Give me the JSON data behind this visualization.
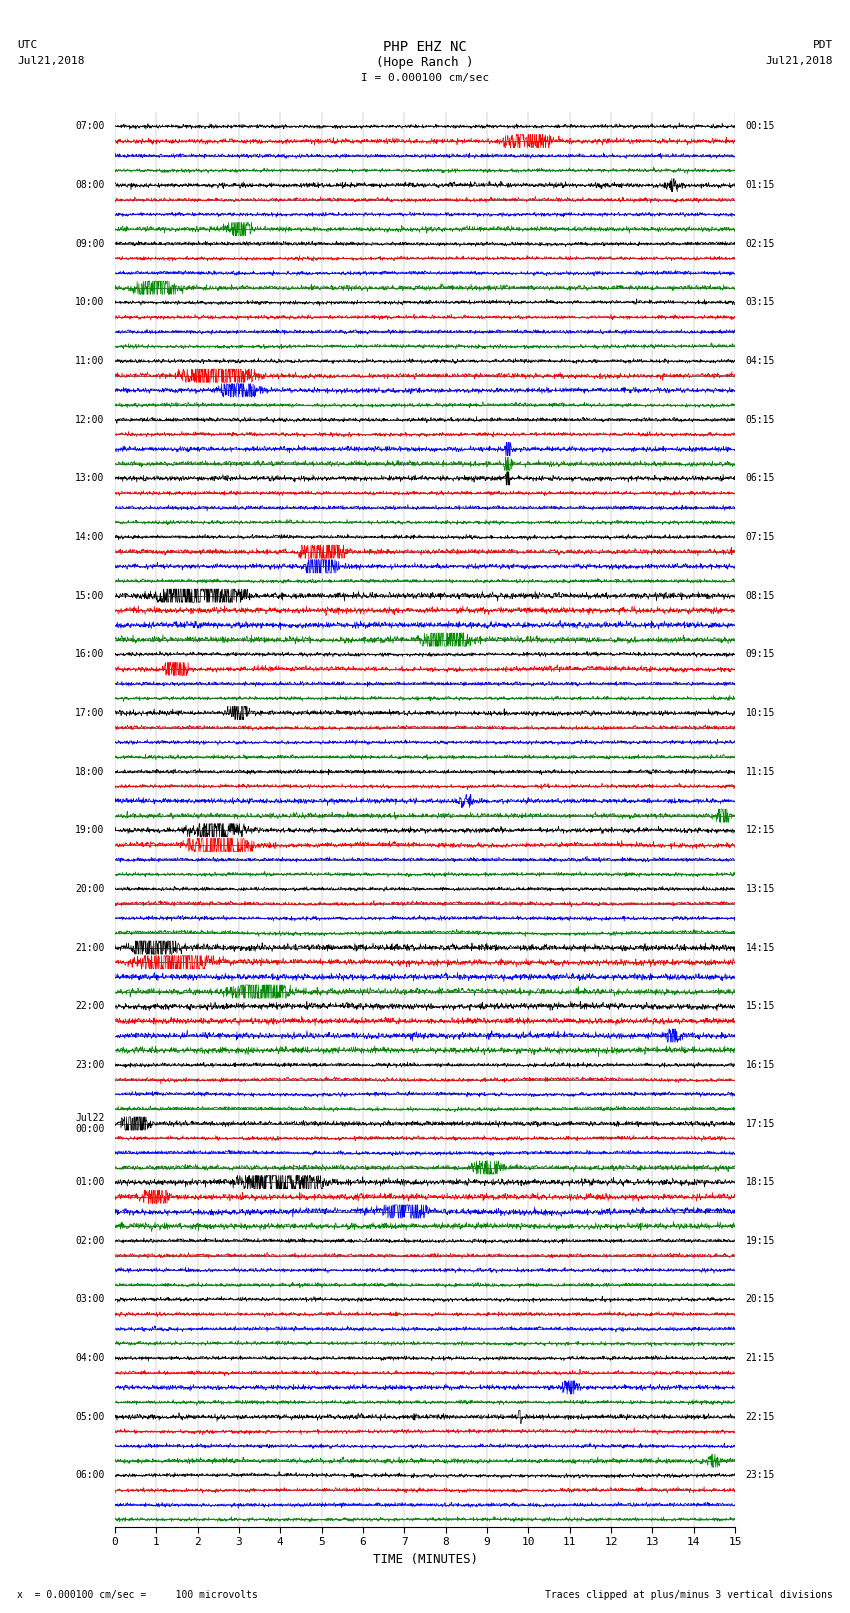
{
  "title_line1": "PHP EHZ NC",
  "title_line2": "(Hope Ranch )",
  "scale_label": "I = 0.000100 cm/sec",
  "left_header_1": "UTC",
  "left_header_2": "Jul21,2018",
  "right_header_1": "PDT",
  "right_header_2": "Jul21,2018",
  "xlabel": "TIME (MINUTES)",
  "bottom_note_left": "x  = 0.000100 cm/sec =     100 microvolts",
  "bottom_note_right": "Traces clipped at plus/minus 3 vertical divisions",
  "background_color": "#ffffff",
  "trace_colors": [
    "#000000",
    "#ff0000",
    "#0000ff",
    "#008800"
  ],
  "x_min": 0,
  "x_max": 15,
  "x_ticks": [
    0,
    1,
    2,
    3,
    4,
    5,
    6,
    7,
    8,
    9,
    10,
    11,
    12,
    13,
    14,
    15
  ],
  "left_labels": [
    "07:00",
    "",
    "",
    "",
    "08:00",
    "",
    "",
    "",
    "09:00",
    "",
    "",
    "",
    "10:00",
    "",
    "",
    "",
    "11:00",
    "",
    "",
    "",
    "12:00",
    "",
    "",
    "",
    "13:00",
    "",
    "",
    "",
    "14:00",
    "",
    "",
    "",
    "15:00",
    "",
    "",
    "",
    "16:00",
    "",
    "",
    "",
    "17:00",
    "",
    "",
    "",
    "18:00",
    "",
    "",
    "",
    "19:00",
    "",
    "",
    "",
    "20:00",
    "",
    "",
    "",
    "21:00",
    "",
    "",
    "",
    "22:00",
    "",
    "",
    "",
    "23:00",
    "",
    "",
    "",
    "Jul22\n00:00",
    "",
    "",
    "",
    "01:00",
    "",
    "",
    "",
    "02:00",
    "",
    "",
    "",
    "03:00",
    "",
    "",
    "",
    "04:00",
    "",
    "",
    "",
    "05:00",
    "",
    "",
    "",
    "06:00",
    "",
    "",
    ""
  ],
  "right_labels": [
    "00:15",
    "",
    "",
    "",
    "01:15",
    "",
    "",
    "",
    "02:15",
    "",
    "",
    "",
    "03:15",
    "",
    "",
    "",
    "04:15",
    "",
    "",
    "",
    "05:15",
    "",
    "",
    "",
    "06:15",
    "",
    "",
    "",
    "07:15",
    "",
    "",
    "",
    "08:15",
    "",
    "",
    "",
    "09:15",
    "",
    "",
    "",
    "10:15",
    "",
    "",
    "",
    "11:15",
    "",
    "",
    "",
    "12:15",
    "",
    "",
    "",
    "13:15",
    "",
    "",
    "",
    "14:15",
    "",
    "",
    "",
    "15:15",
    "",
    "",
    "",
    "16:15",
    "",
    "",
    "",
    "17:15",
    "",
    "",
    "",
    "18:15",
    "",
    "",
    "",
    "19:15",
    "",
    "",
    "",
    "20:15",
    "",
    "",
    "",
    "21:15",
    "",
    "",
    "",
    "22:15",
    "",
    "",
    "",
    "23:15",
    "",
    "",
    ""
  ],
  "seed": 42
}
